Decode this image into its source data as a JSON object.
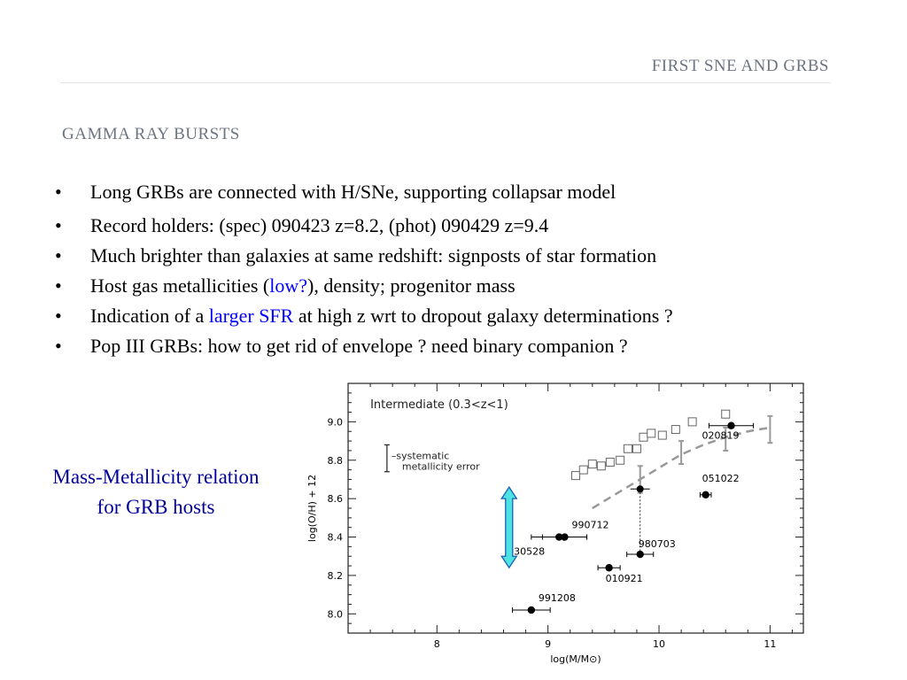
{
  "header": {
    "title": "First SNe and GRBs"
  },
  "section": {
    "title": "Gamma Ray Bursts"
  },
  "bullets": [
    {
      "parts": [
        {
          "text": "Long GRBs are connected with H/SNe, supporting collapsar model",
          "highlight": false
        }
      ]
    },
    {
      "parts": [
        {
          "text": "Record holders: (spec) 090423 z=8.2, (phot) 090429 z=9.4",
          "highlight": false
        }
      ]
    },
    {
      "parts": [
        {
          "text": "Much brighter than galaxies at same redshift: signposts of star formation",
          "highlight": false
        }
      ]
    },
    {
      "parts": [
        {
          "text": "Host gas metallicities (",
          "highlight": false
        },
        {
          "text": "low?",
          "highlight": true
        },
        {
          "text": "), density; progenitor mass",
          "highlight": false
        }
      ]
    },
    {
      "parts": [
        {
          "text": "Indication of a ",
          "highlight": false
        },
        {
          "text": "larger SFR",
          "highlight": true
        },
        {
          "text": " at high z wrt to dropout galaxy determinations ?",
          "highlight": false
        }
      ]
    },
    {
      "parts": [
        {
          "text": "Pop III GRBs: how to get rid of envelope ? need binary companion ?",
          "highlight": false
        }
      ]
    }
  ],
  "caption": {
    "line1": "Mass-Metallicity relation",
    "line2": "for GRB hosts"
  },
  "colors": {
    "header": "#6d7580",
    "highlight": "#0000ff",
    "caption": "#000099",
    "arrow_fill": "#4de3e3"
  },
  "chart_data": {
    "type": "scatter",
    "title": "Intermediate  (0.3<z<1)",
    "xlabel": "log(M/M⊙)",
    "ylabel": "log(O/H) + 12",
    "xlim": [
      7.2,
      11.3
    ],
    "ylim": [
      7.9,
      9.2
    ],
    "xticks": [
      8,
      9,
      10,
      11
    ],
    "yticks": [
      8.0,
      8.2,
      8.4,
      8.6,
      8.8,
      9.0
    ],
    "ytick_labels": [
      "8.0",
      "8.2",
      "8.4",
      "8.6",
      "8.8",
      "9.0"
    ],
    "grb_hosts": [
      {
        "name": "020819",
        "x": 10.65,
        "y": 8.98,
        "xerr": 0.2
      },
      {
        "name": "051022",
        "x": 10.42,
        "y": 8.62,
        "xerr": 0.05
      },
      {
        "name": "990712",
        "x": 9.15,
        "y": 8.4,
        "xerr": 0.2
      },
      {
        "name": "030528",
        "x": 9.1,
        "y": 8.4,
        "xerr": 0.25
      },
      {
        "name": "980703",
        "x": 9.83,
        "y": 8.31,
        "xerr": 0.12
      },
      {
        "name": "010921",
        "x": 9.55,
        "y": 8.24,
        "xerr": 0.1
      },
      {
        "name": "991208",
        "x": 8.85,
        "y": 8.02,
        "xerr": 0.17
      }
    ],
    "galaxies_open": [
      {
        "x": 9.25,
        "y": 8.72
      },
      {
        "x": 9.32,
        "y": 8.75
      },
      {
        "x": 9.4,
        "y": 8.78
      },
      {
        "x": 9.48,
        "y": 8.77
      },
      {
        "x": 9.56,
        "y": 8.79
      },
      {
        "x": 9.65,
        "y": 8.8
      },
      {
        "x": 9.72,
        "y": 8.86
      },
      {
        "x": 9.8,
        "y": 8.86
      },
      {
        "x": 9.86,
        "y": 8.92
      },
      {
        "x": 9.93,
        "y": 8.94
      },
      {
        "x": 10.03,
        "y": 8.93
      },
      {
        "x": 10.15,
        "y": 8.96
      },
      {
        "x": 10.3,
        "y": 9.0
      },
      {
        "x": 10.6,
        "y": 9.04
      }
    ],
    "mean_relation": [
      {
        "x": 9.4,
        "y": 8.55
      },
      {
        "x": 9.6,
        "y": 8.62
      },
      {
        "x": 9.8,
        "y": 8.69
      },
      {
        "x": 10.0,
        "y": 8.76
      },
      {
        "x": 10.2,
        "y": 8.83
      },
      {
        "x": 10.4,
        "y": 8.88
      },
      {
        "x": 10.6,
        "y": 8.92
      },
      {
        "x": 10.8,
        "y": 8.95
      },
      {
        "x": 11.0,
        "y": 8.97
      }
    ],
    "mean_relation_errors": [
      {
        "x": 9.83,
        "y": 8.7,
        "yerr": 0.07
      },
      {
        "x": 10.2,
        "y": 8.84,
        "yerr": 0.06
      },
      {
        "x": 10.6,
        "y": 8.91,
        "yerr": 0.06
      },
      {
        "x": 11.0,
        "y": 8.96,
        "yerr": 0.07
      }
    ],
    "offset_marker": {
      "x": 9.83,
      "y_top": 8.65,
      "y_bottom": 8.31,
      "y_point": 8.65
    },
    "legend": {
      "label_line1": "–systematic",
      "label_line2": "metallicity  error",
      "y_center": 8.81,
      "half_range": 0.07,
      "x": 7.55
    },
    "arrow": {
      "x": 8.65,
      "y_top": 8.66,
      "y_bottom": 8.24
    }
  }
}
